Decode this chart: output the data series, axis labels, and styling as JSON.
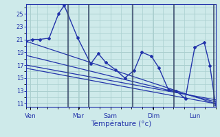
{
  "background_color": "#ceeaea",
  "grid_color": "#aacfcf",
  "line_color": "#2233aa",
  "ylim": [
    10.5,
    26.5
  ],
  "yticks": [
    11,
    13,
    15,
    17,
    19,
    21,
    23,
    25
  ],
  "xlabel": "Température (°c)",
  "xlim": [
    0,
    100
  ],
  "temp_x": [
    0,
    3,
    7,
    12,
    17,
    20,
    27,
    34,
    38,
    42,
    47,
    52,
    57,
    61,
    66,
    70,
    75,
    79,
    84,
    89,
    94,
    97,
    100
  ],
  "temp_y": [
    20.7,
    21.0,
    21.0,
    21.2,
    25.0,
    26.3,
    21.3,
    17.2,
    18.8,
    17.4,
    16.3,
    15.0,
    16.2,
    19.0,
    18.4,
    16.6,
    13.2,
    13.0,
    11.8,
    19.8,
    20.5,
    16.9,
    10.8
  ],
  "trend1_x": [
    0,
    100
  ],
  "trend1_y": [
    20.7,
    11.0
  ],
  "trend2_x": [
    0,
    100
  ],
  "trend2_y": [
    18.5,
    11.3
  ],
  "trend3_x": [
    0,
    100
  ],
  "trend3_y": [
    17.0,
    11.6
  ],
  "trend4_x": [
    0,
    100
  ],
  "trend4_y": [
    16.5,
    11.0
  ],
  "vline_positions": [
    22,
    33,
    56,
    78,
    99
  ],
  "day_tick_positions": [
    2,
    27.5,
    44.5,
    67,
    89
  ],
  "day_tick_labels": [
    "Ven",
    "Mar",
    "Sam",
    "Dim",
    "Lun"
  ]
}
